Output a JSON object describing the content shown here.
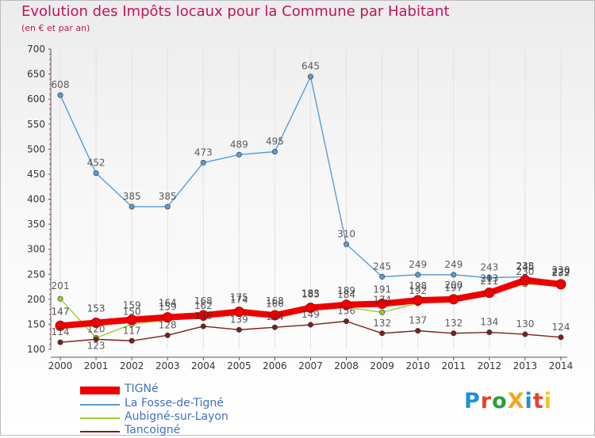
{
  "header": {
    "title": "Evolution des Impôts locaux pour la Commune par Habitant",
    "subtitle": "(en € et par an)"
  },
  "logo": {
    "text": "ProXiti",
    "colors": [
      "#1f8fd6",
      "#e8412b",
      "#2a9d3a",
      "#f2a51c",
      "#1f8fd6",
      "#e8412b",
      "#f2c41c"
    ]
  },
  "chart_data": {
    "type": "line",
    "title": "Evolution des Impôts locaux pour la Commune par Habitant",
    "subtitle": "(en € et par an)",
    "xlabel": "",
    "ylabel": "",
    "ylim": [
      100,
      700
    ],
    "yticks": [
      100,
      150,
      200,
      250,
      300,
      350,
      400,
      450,
      500,
      550,
      600,
      650,
      700
    ],
    "x": [
      "2000",
      "2001",
      "2002",
      "2003",
      "2004",
      "2005",
      "2006",
      "2007",
      "2008",
      "2009",
      "2010",
      "2011",
      "2012",
      "2013",
      "2014"
    ],
    "series": [
      {
        "name": "TIGNé",
        "color": "#ee0000",
        "values": [
          147,
          153,
          159,
          164,
          168,
          175,
          168,
          183,
          189,
          191,
          198,
          200,
          213,
          238,
          230
        ],
        "labels": [
          "147",
          "153",
          "159",
          "164",
          "168",
          "175",
          "168",
          "183",
          "189",
          "191",
          "198",
          "200",
          "213",
          "238",
          "230"
        ]
      },
      {
        "name": "La Fosse-de-Tigné",
        "color": "#5b9bd5",
        "values": [
          608,
          452,
          385,
          385,
          473,
          489,
          495,
          645,
          310,
          245,
          249,
          249,
          243,
          245,
          232
        ],
        "labels": [
          "608",
          "452",
          "385",
          "385",
          "473",
          "489",
          "495",
          "645",
          "310",
          "245",
          "249",
          "249",
          "243",
          "245",
          "232"
        ]
      },
      {
        "name": "Aubigné-sur-Layon",
        "color": "#9acd32",
        "values": [
          201,
          123,
          150,
          159,
          162,
          174,
          166,
          185,
          184,
          174,
          192,
          197,
          211,
          230,
          229
        ],
        "labels": [
          "201",
          "123",
          "150",
          "159",
          "162",
          "174",
          "166",
          "185",
          "184",
          "174",
          "192",
          "197",
          "211",
          "230",
          "229"
        ]
      },
      {
        "name": "Tancoigné",
        "color": "#7b1f1f",
        "values": [
          114,
          120,
          117,
          128,
          146,
          139,
          144,
          149,
          156,
          132,
          137,
          132,
          134,
          130,
          124
        ],
        "labels": [
          "114",
          "120",
          "117",
          "128",
          "146",
          "139",
          "144",
          "149",
          "156",
          "132",
          "137",
          "132",
          "134",
          "130",
          "124"
        ]
      }
    ],
    "legend_position": "bottom-left"
  }
}
